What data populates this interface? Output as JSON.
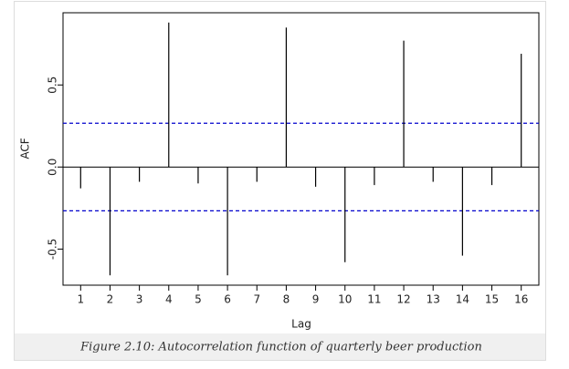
{
  "chart_data": {
    "type": "acf",
    "caption": "Figure 2.10: Autocorrelation function of quarterly beer production",
    "x_label": "Lag",
    "y_label": "ACF",
    "x": [
      1,
      2,
      3,
      4,
      5,
      6,
      7,
      8,
      9,
      10,
      11,
      12,
      13,
      14,
      15,
      16
    ],
    "values": [
      -0.13,
      -0.66,
      -0.09,
      0.88,
      -0.1,
      -0.66,
      -0.09,
      0.85,
      -0.12,
      -0.58,
      -0.11,
      0.77,
      -0.09,
      -0.54,
      -0.11,
      0.69
    ],
    "color": "#000000",
    "ci": [
      -0.267,
      0.267
    ],
    "ci_color": "#0000cc",
    "xlim": [
      0.4,
      16.6
    ],
    "ylim": [
      -0.72,
      0.94
    ],
    "xticks": [
      1,
      2,
      3,
      4,
      5,
      6,
      7,
      8,
      9,
      10,
      11,
      12,
      13,
      14,
      15,
      16
    ],
    "yticks": [
      -0.5,
      {
        "value": 0,
        "label": "0.0"
      },
      0.5
    ]
  }
}
